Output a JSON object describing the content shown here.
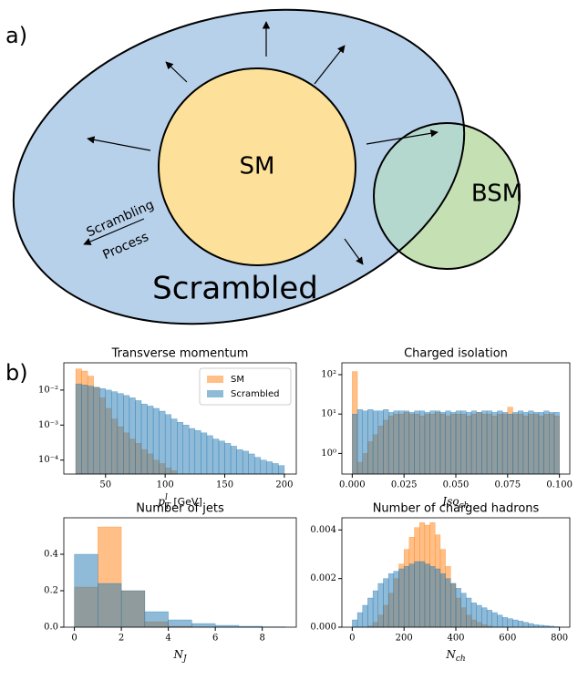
{
  "diagram": {
    "label": "a)",
    "sm": "SM",
    "bsm": "BSM",
    "scrambled": "Scrambled",
    "process": [
      "Scrambling",
      "Process"
    ]
  },
  "panel_label": "b)",
  "chart_data": [
    {
      "type": "histogram",
      "title": "Transverse momentum",
      "xlabel": {
        "text": "p",
        "sub": "T",
        "sup": "l",
        "unit": " [GeV]"
      },
      "bins": [
        25,
        30,
        35,
        40,
        45,
        50,
        55,
        60,
        65,
        70,
        75,
        80,
        85,
        90,
        95,
        100,
        105,
        110,
        115,
        120,
        125,
        130,
        135,
        140,
        145,
        150,
        155,
        160,
        165,
        170,
        175,
        180,
        185,
        190,
        195,
        200
      ],
      "series": [
        {
          "name": "SM",
          "color": "#ff7f0e",
          "values": [
            0.04,
            0.035,
            0.025,
            0.012,
            0.006,
            0.003,
            0.0015,
            0.0009,
            0.0006,
            0.0004,
            0.0003,
            0.0002,
            0.00015,
            0.0001,
            8e-05,
            6e-05,
            5e-05,
            0,
            0,
            0,
            0,
            0,
            0,
            0,
            0,
            0,
            0,
            0,
            0,
            0,
            0,
            0,
            0,
            0,
            0
          ]
        },
        {
          "name": "Scrambled",
          "color": "#1f77b4",
          "values": [
            0.015,
            0.014,
            0.013,
            0.012,
            0.011,
            0.01,
            0.009,
            0.008,
            0.007,
            0.006,
            0.005,
            0.004,
            0.0035,
            0.003,
            0.0025,
            0.002,
            0.0015,
            0.0012,
            0.001,
            0.0008,
            0.0007,
            0.0006,
            0.0005,
            0.0004,
            0.00035,
            0.0003,
            0.00025,
            0.0002,
            0.00018,
            0.00015,
            0.00012,
            0.0001,
            9e-05,
            8e-05,
            7e-05
          ]
        }
      ],
      "xlim": [
        15,
        210
      ],
      "xticks": [
        50,
        100,
        150,
        200
      ],
      "ylim": [
        4e-05,
        0.06
      ],
      "log_y": true,
      "yticks": [
        {
          "value": 0.0001,
          "label": "10⁻⁴"
        },
        {
          "value": 0.001,
          "label": "10⁻³"
        },
        {
          "value": 0.01,
          "label": "10⁻²"
        }
      ],
      "legend": "upper right"
    },
    {
      "type": "histogram",
      "title": "Charged isolation",
      "xlabel": {
        "text": "Iso",
        "sub": "ch"
      },
      "bins": [
        0,
        0.0025,
        0.005,
        0.0075,
        0.01,
        0.0125,
        0.015,
        0.0175,
        0.02,
        0.0225,
        0.025,
        0.0275,
        0.03,
        0.0325,
        0.035,
        0.0375,
        0.04,
        0.0425,
        0.045,
        0.0475,
        0.05,
        0.0525,
        0.055,
        0.0575,
        0.06,
        0.0625,
        0.065,
        0.0675,
        0.07,
        0.0725,
        0.075,
        0.0775,
        0.08,
        0.0825,
        0.085,
        0.0875,
        0.09,
        0.0925,
        0.095,
        0.0975,
        0.1
      ],
      "series": [
        {
          "name": "SM",
          "color": "#ff7f0e",
          "values": [
            120,
            0.6,
            1,
            2,
            3,
            5,
            7,
            9,
            10,
            10,
            11,
            10,
            10,
            9,
            10,
            10,
            11,
            10,
            9,
            10,
            10,
            10,
            9,
            10,
            11,
            10,
            10,
            9,
            10,
            10,
            15,
            10,
            10,
            9,
            10,
            10,
            9,
            10,
            10,
            9
          ]
        },
        {
          "name": "Scrambled",
          "color": "#1f77b4",
          "values": [
            10,
            13,
            12,
            13,
            12,
            12,
            13,
            11,
            12,
            12,
            12,
            11,
            12,
            12,
            11,
            12,
            12,
            11,
            12,
            11,
            12,
            12,
            11,
            12,
            11,
            12,
            12,
            11,
            12,
            11,
            10,
            11,
            12,
            11,
            12,
            11,
            11,
            12,
            11,
            11
          ]
        }
      ],
      "xlim": [
        -0.005,
        0.105
      ],
      "xticks": [
        {
          "value": 0,
          "label": "0.000"
        },
        {
          "value": 0.025,
          "label": "0.025"
        },
        {
          "value": 0.05,
          "label": "0.050"
        },
        {
          "value": 0.075,
          "label": "0.075"
        },
        {
          "value": 0.1,
          "label": "0.100"
        }
      ],
      "ylim": [
        0.3,
        200
      ],
      "log_y": true,
      "yticks": [
        {
          "value": 1,
          "label": "10⁰"
        },
        {
          "value": 10,
          "label": "10¹"
        },
        {
          "value": 100,
          "label": "10²"
        }
      ]
    },
    {
      "type": "histogram",
      "title": "Number of jets",
      "xlabel": {
        "text": "N",
        "sub": "J"
      },
      "bins": [
        0,
        1,
        2,
        3,
        4,
        5,
        6,
        7,
        8,
        9
      ],
      "series": [
        {
          "name": "SM",
          "color": "#ff7f0e",
          "values": [
            0.22,
            0.55,
            0.2,
            0.03,
            0.005,
            0.001,
            0,
            0,
            0
          ]
        },
        {
          "name": "Scrambled",
          "color": "#1f77b4",
          "values": [
            0.4,
            0.24,
            0.2,
            0.085,
            0.04,
            0.02,
            0.01,
            0.005,
            0.002
          ]
        }
      ],
      "xlim": [
        -0.45,
        9.45
      ],
      "xticks": [
        0,
        2,
        4,
        6,
        8
      ],
      "ylim": [
        0,
        0.6
      ],
      "yticks": [
        {
          "value": 0,
          "label": "0.0"
        },
        {
          "value": 0.2,
          "label": "0.2"
        },
        {
          "value": 0.4,
          "label": "0.4"
        }
      ]
    },
    {
      "type": "histogram",
      "title": "Number of charged hadrons",
      "xlabel": {
        "text": "N",
        "sub": "ch"
      },
      "bins": [
        0,
        20,
        40,
        60,
        80,
        100,
        120,
        140,
        160,
        180,
        200,
        220,
        240,
        260,
        280,
        300,
        320,
        340,
        360,
        380,
        400,
        420,
        440,
        460,
        480,
        500,
        520,
        540,
        560,
        580,
        600,
        620,
        640,
        660,
        680,
        700,
        720,
        740,
        760,
        780,
        800
      ],
      "series": [
        {
          "name": "SM",
          "color": "#ff7f0e",
          "values": [
            0,
            0,
            0,
            5e-05,
            0.0002,
            0.0005,
            0.0009,
            0.0014,
            0.002,
            0.0026,
            0.0032,
            0.0037,
            0.0041,
            0.0043,
            0.0042,
            0.0043,
            0.0038,
            0.0032,
            0.0025,
            0.0018,
            0.0012,
            0.0008,
            0.0005,
            0.0003,
            0.0002,
            0.0001,
            5e-05,
            0,
            0,
            0,
            0,
            0,
            0,
            0,
            0,
            0,
            0,
            0,
            0,
            0
          ]
        },
        {
          "name": "Scrambled",
          "color": "#1f77b4",
          "values": [
            0.0003,
            0.0006,
            0.0009,
            0.0012,
            0.0015,
            0.0018,
            0.002,
            0.0022,
            0.0023,
            0.0024,
            0.0025,
            0.0026,
            0.0027,
            0.0027,
            0.0026,
            0.0025,
            0.0024,
            0.0022,
            0.002,
            0.0018,
            0.0016,
            0.0014,
            0.0012,
            0.001,
            0.0009,
            0.0008,
            0.0007,
            0.0006,
            0.0005,
            0.0004,
            0.00035,
            0.0003,
            0.00025,
            0.0002,
            0.00015,
            0.0001,
            8e-05,
            6e-05,
            4e-05,
            2e-05
          ]
        }
      ],
      "xlim": [
        -40,
        840
      ],
      "xticks": [
        0,
        200,
        400,
        600,
        800
      ],
      "ylim": [
        0,
        0.0045
      ],
      "yticks": [
        {
          "value": 0,
          "label": "0.000"
        },
        {
          "value": 0.002,
          "label": "0.002"
        },
        {
          "value": 0.004,
          "label": "0.004"
        }
      ]
    }
  ]
}
